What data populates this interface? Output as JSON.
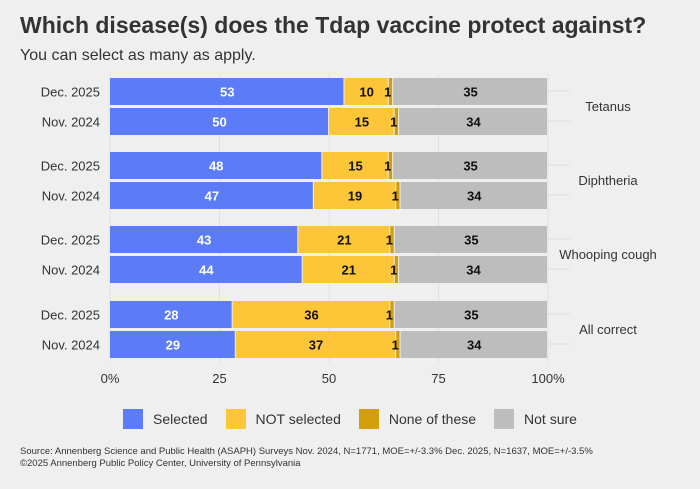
{
  "chart_data": {
    "type": "bar",
    "orientation": "horizontal",
    "stacked": true,
    "title": "Which disease(s) does the Tdap vaccine protect against?",
    "subtitle": "You can select as many as apply.",
    "facets": [
      "Tetanus",
      "Diphtheria",
      "Whooping cough",
      "All correct"
    ],
    "categories": [
      "Dec. 2025",
      "Nov. 2024"
    ],
    "series": [
      {
        "name": "Selected",
        "color": "#5b7cf6",
        "values": [
          [
            53,
            50
          ],
          [
            48,
            47
          ],
          [
            43,
            44
          ],
          [
            28,
            29
          ]
        ]
      },
      {
        "name": "NOT selected",
        "color": "#fdc538",
        "values": [
          [
            10,
            15
          ],
          [
            15,
            19
          ],
          [
            21,
            21
          ],
          [
            36,
            37
          ]
        ]
      },
      {
        "name": "None of these",
        "color": "#d39e0c",
        "values": [
          [
            1,
            1
          ],
          [
            1,
            1
          ],
          [
            1,
            1
          ],
          [
            1,
            1
          ]
        ]
      },
      {
        "name": "Not sure",
        "color": "#bdbdbd",
        "values": [
          [
            35,
            34
          ],
          [
            35,
            34
          ],
          [
            35,
            34
          ],
          [
            35,
            34
          ]
        ]
      }
    ],
    "xlim": [
      0,
      100
    ],
    "xticks": [
      "0%",
      "25",
      "50",
      "75",
      "100%"
    ],
    "legend_position": "bottom",
    "grid": true
  },
  "source": "Source: Annenberg Science and Public Health (ASAPH) Surveys Nov. 2024, N=1771, MOE=+/-3.3% Dec. 2025, N=1637, MOE=+/-3.5%",
  "copyright": "©2025 Annenberg Public Policy Center, University of Pennsylvania"
}
